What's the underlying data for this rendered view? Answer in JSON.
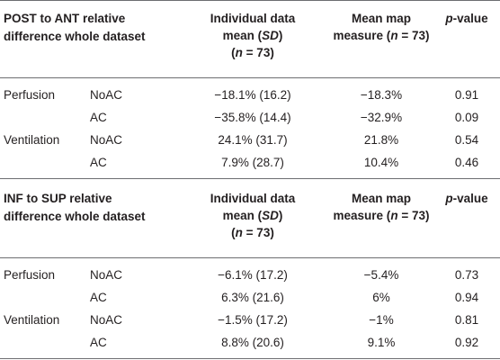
{
  "sections": [
    {
      "title_line1": "POST to ANT relative",
      "title_line2": "difference whole dataset",
      "col_individual": [
        "Individual data",
        "mean (",
        "SD",
        ")",
        "(",
        "n",
        " = 73)"
      ],
      "col_mean": [
        "Mean map",
        "measure (",
        "n",
        " = 73)"
      ],
      "col_p": [
        "p",
        "-value"
      ],
      "rows": [
        {
          "group": "Perfusion",
          "sub": "NoAC",
          "individual": "−18.1% (16.2)",
          "mean": "−18.3%",
          "p": "0.91"
        },
        {
          "group": "",
          "sub": "AC",
          "individual": "−35.8% (14.4)",
          "mean": "−32.9%",
          "p": "0.09"
        },
        {
          "group": "Ventilation",
          "sub": "NoAC",
          "individual": "24.1% (31.7)",
          "mean": "21.8%",
          "p": "0.54"
        },
        {
          "group": "",
          "sub": "AC",
          "individual": "7.9% (28.7)",
          "mean": "10.4%",
          "p": "0.46"
        }
      ]
    },
    {
      "title_line1": "INF to SUP relative",
      "title_line2": "difference whole dataset",
      "col_individual": [
        "Individual data",
        "mean (",
        "SD",
        ")",
        "(",
        "n",
        " = 73)"
      ],
      "col_mean": [
        "Mean map",
        "measure (",
        "n",
        " = 73)"
      ],
      "col_p": [
        "p",
        "-value"
      ],
      "rows": [
        {
          "group": "Perfusion",
          "sub": "NoAC",
          "individual": "−6.1% (17.2)",
          "mean": "−5.4%",
          "p": "0.73"
        },
        {
          "group": "",
          "sub": "AC",
          "individual": "6.3% (21.6)",
          "mean": "6%",
          "p": "0.94"
        },
        {
          "group": "Ventilation",
          "sub": "NoAC",
          "individual": "−1.5% (17.2)",
          "mean": "−1%",
          "p": "0.81"
        },
        {
          "group": "",
          "sub": "AC",
          "individual": "8.8% (20.6)",
          "mean": "9.1%",
          "p": "0.92"
        }
      ]
    }
  ]
}
